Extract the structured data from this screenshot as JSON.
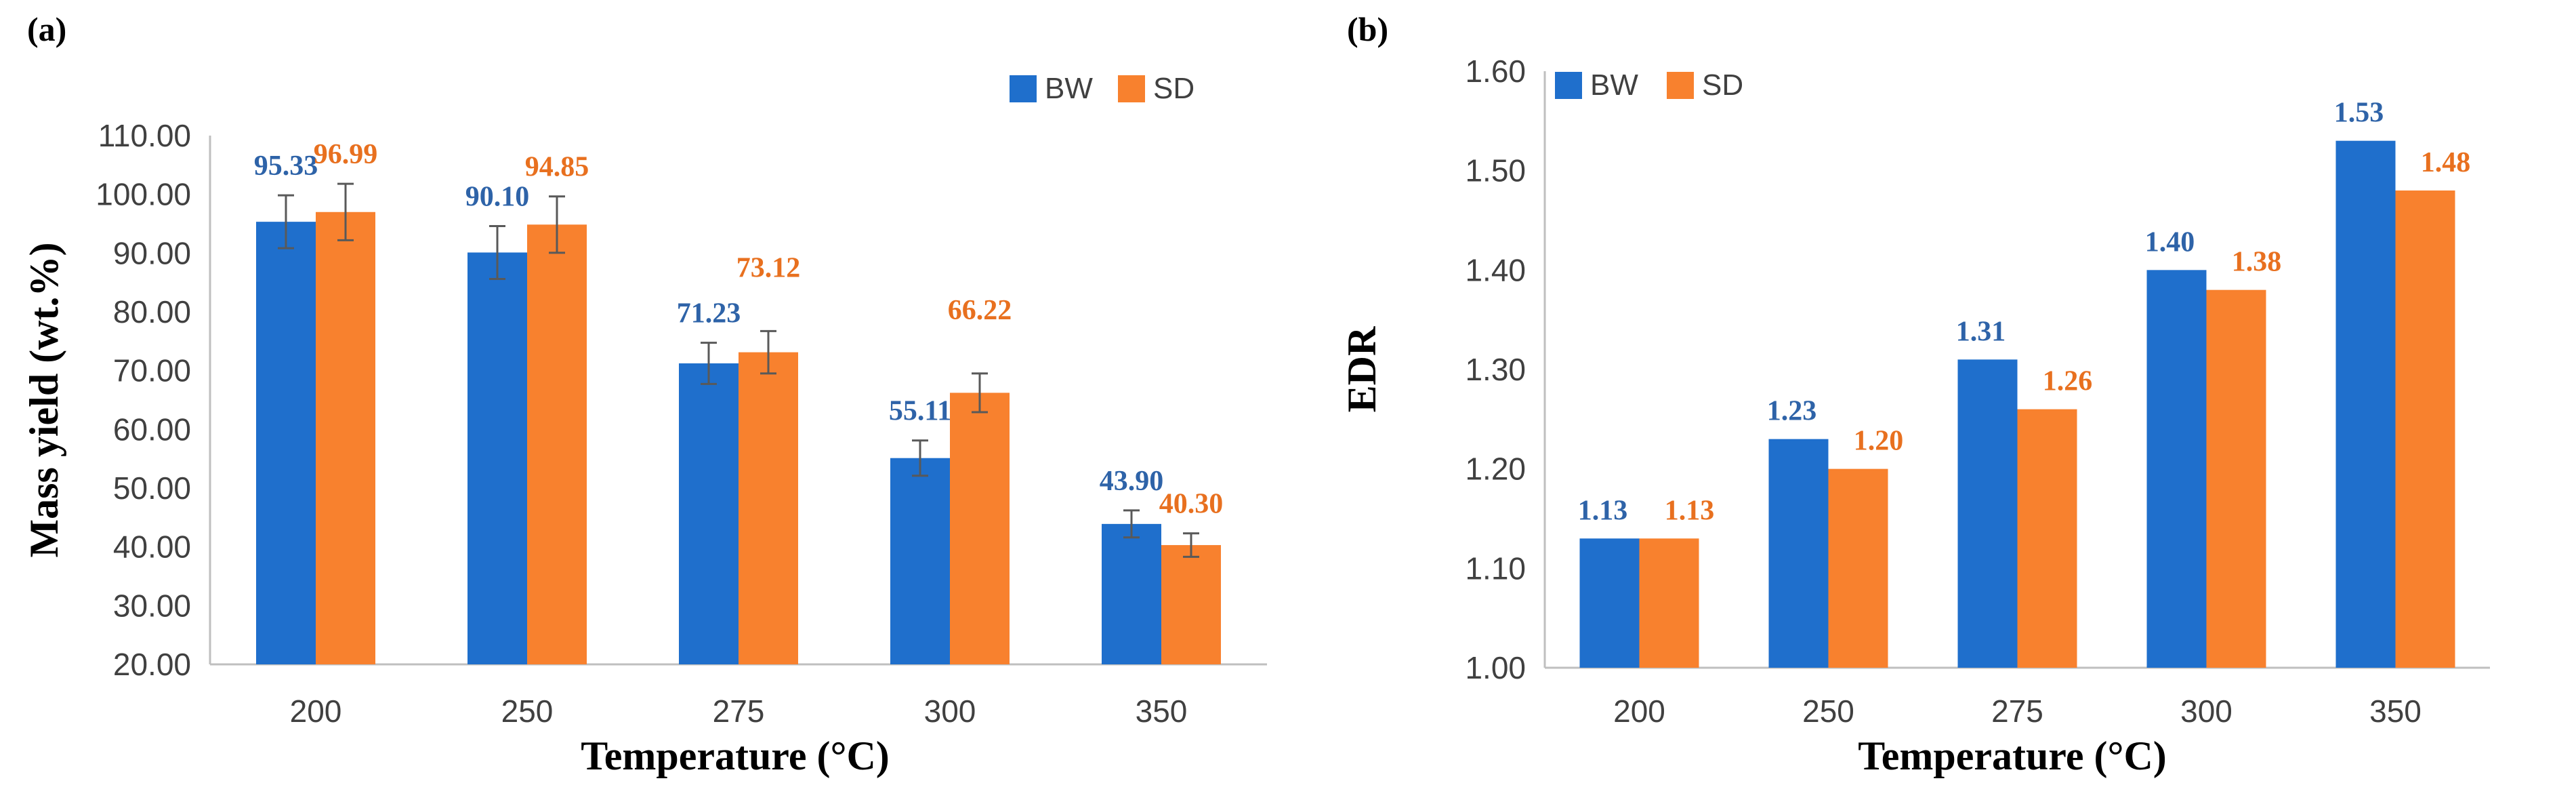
{
  "chart_data": [
    {
      "type": "bar",
      "panel_label": "(a)",
      "categories": [
        "200",
        "250",
        "275",
        "300",
        "350"
      ],
      "series": [
        {
          "name": "BW",
          "color": "#1f6fcc",
          "label_color": "#2e63a8",
          "values": [
            95.33,
            90.1,
            71.23,
            55.11,
            43.9
          ],
          "labels": [
            "95.33",
            "90.10",
            "71.23",
            "55.11",
            "43.90"
          ],
          "error": [
            4.5,
            4.5,
            3.5,
            3.0,
            2.3
          ]
        },
        {
          "name": "SD",
          "color": "#f8812e",
          "label_color": "#e8701f",
          "values": [
            96.99,
            94.85,
            73.12,
            66.22,
            40.3
          ],
          "labels": [
            "96.99",
            "94.85",
            "73.12",
            "66.22",
            "40.30"
          ],
          "error": [
            4.8,
            4.8,
            3.6,
            3.3,
            2.0
          ]
        }
      ],
      "xlabel": "Temperature (°C)",
      "ylabel": "Mass yield (wt.%)",
      "ylim": [
        20,
        110
      ],
      "yticks": [
        "20.00",
        "30.00",
        "40.00",
        "50.00",
        "60.00",
        "70.00",
        "80.00",
        "90.00",
        "100.00",
        "110.00"
      ],
      "legend_position": "top-right",
      "error_bars": true,
      "grid": false
    },
    {
      "type": "bar",
      "panel_label": "(b)",
      "categories": [
        "200",
        "250",
        "275",
        "300",
        "350"
      ],
      "series": [
        {
          "name": "BW",
          "color": "#1f6fcc",
          "label_color": "#2e63a8",
          "values": [
            1.13,
            1.23,
            1.31,
            1.4,
            1.53
          ],
          "labels": [
            "1.13",
            "1.23",
            "1.31",
            "1.40",
            "1.53"
          ]
        },
        {
          "name": "SD",
          "color": "#f8812e",
          "label_color": "#e8701f",
          "values": [
            1.13,
            1.2,
            1.26,
            1.38,
            1.48
          ],
          "labels": [
            "1.13",
            "1.20",
            "1.26",
            "1.38",
            "1.48"
          ]
        }
      ],
      "xlabel": "Temperature (°C)",
      "ylabel": "EDR",
      "ylim": [
        1.0,
        1.6
      ],
      "yticks": [
        "1.00",
        "1.10",
        "1.20",
        "1.30",
        "1.40",
        "1.50",
        "1.60"
      ],
      "legend_position": "top-left",
      "error_bars": false,
      "grid": false
    }
  ]
}
